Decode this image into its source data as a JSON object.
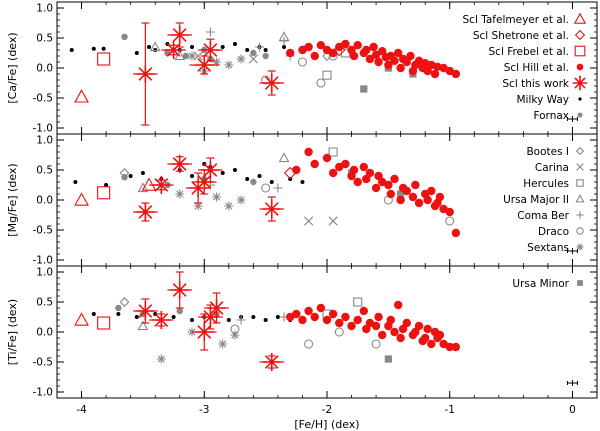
{
  "figure": {
    "x_axis": {
      "label": "[Fe/H] (dex)",
      "lim": [
        -4.2,
        0.2
      ],
      "ticks": [
        -4,
        -3,
        -2,
        -1,
        0
      ]
    },
    "y_ticks": [
      -1.0,
      -0.5,
      0.0,
      0.5,
      1.0
    ],
    "y_lim": [
      -1.1,
      1.1
    ],
    "colors": {
      "red": "#ee1111",
      "grey": "#888888",
      "black": "#000000"
    }
  },
  "chart_data": [
    {
      "type": "scatter",
      "panel": "Ca",
      "ylabel": "[Ca/Fe] (dex)",
      "legend": [
        "Scl Tafelmeyer et al.",
        "Scl Shetrone et al.",
        "Scl Frebel et al.",
        "Scl Hill et al.",
        "Scl this work",
        "Milky Way",
        "Fornax"
      ],
      "legend_markers": [
        "tri-red",
        "diamond-red",
        "square-red",
        "dot-red",
        "star-red",
        "dot-black",
        "dot-grey"
      ],
      "series": [
        {
          "name": "Milky Way",
          "marker": "dot-black",
          "x": [
            -4.08,
            -3.9,
            -3.82,
            -3.55,
            -3.45,
            -3.4,
            -3.3,
            -3.2,
            -3.1,
            -3.0,
            -2.95,
            -2.85,
            -2.75,
            -2.65,
            -2.55,
            -2.5,
            -2.35,
            -2.2
          ],
          "y": [
            0.3,
            0.32,
            0.32,
            0.25,
            0.35,
            0.3,
            0.4,
            0.3,
            0.35,
            0.32,
            0.3,
            0.35,
            0.4,
            0.3,
            0.35,
            0.3,
            0.35,
            0.3
          ]
        },
        {
          "name": "Fornax",
          "marker": "dot-grey",
          "x": [
            -3.65,
            -3.3,
            -3.15,
            -3.0,
            -2.95,
            -2.6,
            -2.5
          ],
          "y": [
            0.52,
            0.25,
            0.2,
            0.3,
            0.15,
            0.25,
            0.2
          ]
        },
        {
          "name": "Sextans",
          "marker": "asterisk-grey",
          "x": [
            -3.1,
            -3.0,
            -2.9,
            -2.8,
            -2.7
          ],
          "y": [
            0.2,
            -0.05,
            0.1,
            0.05,
            0.15
          ]
        },
        {
          "name": "Carina",
          "marker": "x-grey",
          "x": [
            -3.05,
            -2.6
          ],
          "y": [
            0.2,
            0.15
          ]
        },
        {
          "name": "Coma Ber",
          "marker": "plus-grey",
          "x": [
            -2.95,
            -2.55,
            -2.35,
            -2.3
          ],
          "y": [
            0.6,
            0.35,
            0.45,
            0.2
          ]
        },
        {
          "name": "Ursa Major II",
          "marker": "tri-grey",
          "x": [
            -3.4,
            -3.2,
            -2.35
          ],
          "y": [
            0.35,
            0.2,
            0.52
          ]
        },
        {
          "name": "Draco",
          "marker": "circle-grey",
          "x": [
            -2.5,
            -2.2,
            -2.05,
            -1.95
          ],
          "y": [
            -0.2,
            0.1,
            -0.25,
            0.2
          ]
        },
        {
          "name": "Bootes I",
          "marker": "diamond-grey",
          "x": [
            -2.0
          ],
          "y": [
            0.2
          ]
        },
        {
          "name": "Hercules",
          "marker": "square-grey",
          "x": [
            -2.0,
            -1.85
          ],
          "y": [
            -0.12,
            0.25
          ]
        },
        {
          "name": "Ursa Minor",
          "marker": "square-filled-grey",
          "x": [
            -1.7,
            -1.5,
            -1.3
          ],
          "y": [
            -0.35,
            0.0,
            -0.1
          ]
        },
        {
          "name": "Scl Tafelmeyer et al.",
          "marker": "tri-red",
          "x": [
            -4.0
          ],
          "y": [
            -0.48
          ]
        },
        {
          "name": "Scl Shetrone et al.",
          "marker": "diamond-red",
          "x": [
            -1.9
          ],
          "y": [
            0.3
          ]
        },
        {
          "name": "Scl Frebel et al.",
          "marker": "square-red",
          "x": [
            -3.82
          ],
          "y": [
            0.15
          ]
        },
        {
          "name": "Scl Hill et al.",
          "marker": "dot-red",
          "x": [
            -2.3,
            -2.2,
            -2.15,
            -2.1,
            -2.05,
            -2.0,
            -1.95,
            -1.9,
            -1.85,
            -1.8,
            -1.78,
            -1.75,
            -1.7,
            -1.68,
            -1.65,
            -1.62,
            -1.6,
            -1.58,
            -1.55,
            -1.52,
            -1.5,
            -1.48,
            -1.45,
            -1.42,
            -1.4,
            -1.38,
            -1.35,
            -1.32,
            -1.3,
            -1.28,
            -1.25,
            -1.22,
            -1.2,
            -1.18,
            -1.15,
            -1.12,
            -1.1,
            -1.05,
            -1.0,
            -0.95
          ],
          "y": [
            0.25,
            0.3,
            0.35,
            0.2,
            0.38,
            0.3,
            0.25,
            0.35,
            0.4,
            0.3,
            0.2,
            0.38,
            0.25,
            0.3,
            0.15,
            0.35,
            0.22,
            0.1,
            0.28,
            0.18,
            0.05,
            0.2,
            0.12,
            0.25,
            0.0,
            0.15,
            0.1,
            0.2,
            -0.05,
            0.05,
            0.12,
            0.0,
            0.08,
            -0.05,
            0.05,
            -0.1,
            0.02,
            0.0,
            -0.05,
            -0.1
          ]
        },
        {
          "name": "Scl this work",
          "marker": "star-red",
          "x": [
            -3.48,
            -3.25,
            -3.2,
            -3.0,
            -2.95,
            -2.45
          ],
          "y": [
            -0.1,
            0.3,
            0.55,
            0.05,
            0.3,
            -0.25
          ],
          "yerr": [
            0.85,
            0.08,
            0.2,
            0.15,
            0.18,
            0.2
          ],
          "xerr": [
            0.1,
            0.1,
            0.1,
            0.12,
            0.1,
            0.1
          ]
        }
      ]
    },
    {
      "type": "scatter",
      "panel": "Mg",
      "ylabel": "[Mg/Fe] (dex)",
      "legend": [
        "Bootes I",
        "Carina",
        "Hercules",
        "Ursa Major II",
        "Coma Ber",
        "Draco",
        "Sextans"
      ],
      "legend_markers": [
        "diamond-grey",
        "x-grey",
        "square-grey",
        "tri-grey",
        "plus-grey",
        "circle-grey",
        "asterisk-grey"
      ],
      "series": [
        {
          "name": "Milky Way",
          "marker": "dot-black",
          "x": [
            -4.05,
            -3.8,
            -3.6,
            -3.5,
            -3.35,
            -3.2,
            -3.1,
            -3.0,
            -2.95,
            -2.85,
            -2.75,
            -2.65,
            -2.55,
            -2.45,
            -2.3,
            -2.2
          ],
          "y": [
            0.3,
            0.25,
            0.4,
            0.45,
            0.35,
            0.5,
            0.4,
            0.6,
            0.55,
            0.45,
            0.5,
            0.35,
            0.4,
            0.3,
            0.35,
            0.3
          ]
        },
        {
          "name": "Fornax",
          "marker": "dot-grey",
          "x": [
            -3.65,
            -3.3,
            -3.0,
            -2.6
          ],
          "y": [
            0.38,
            0.25,
            0.35,
            0.3
          ]
        },
        {
          "name": "Sextans",
          "marker": "asterisk-grey",
          "x": [
            -3.2,
            -3.05,
            -2.9,
            -2.8,
            -2.7
          ],
          "y": [
            0.1,
            -0.1,
            0.05,
            -0.1,
            0.0
          ]
        },
        {
          "name": "Carina",
          "marker": "x-grey",
          "x": [
            -2.15,
            -1.95
          ],
          "y": [
            -0.35,
            -0.35
          ]
        },
        {
          "name": "Coma Ber",
          "marker": "plus-grey",
          "x": [
            -2.95,
            -2.4
          ],
          "y": [
            0.25,
            0.2
          ]
        },
        {
          "name": "Ursa Major II",
          "marker": "tri-grey",
          "x": [
            -3.5,
            -2.35
          ],
          "y": [
            0.2,
            0.7
          ]
        },
        {
          "name": "Draco",
          "marker": "circle-grey",
          "x": [
            -2.5,
            -1.5,
            -1.0
          ],
          "y": [
            0.2,
            0.0,
            -0.35
          ]
        },
        {
          "name": "Bootes I",
          "marker": "diamond-grey",
          "x": [
            -3.65
          ],
          "y": [
            0.45
          ]
        },
        {
          "name": "Hercules",
          "marker": "square-grey",
          "x": [
            -1.95
          ],
          "y": [
            0.8
          ]
        },
        {
          "name": "Ursa Minor",
          "marker": "square-filled-grey",
          "x": [
            -1.8,
            -1.4
          ],
          "y": [
            0.45,
            0.1
          ]
        },
        {
          "name": "Scl Tafelmeyer et al.",
          "marker": "tri-red",
          "x": [
            -4.0,
            -3.45
          ],
          "y": [
            0.0,
            0.25
          ]
        },
        {
          "name": "Scl Shetrone et al.",
          "marker": "diamond-red",
          "x": [
            -2.3
          ],
          "y": [
            0.45
          ]
        },
        {
          "name": "Scl Frebel et al.",
          "marker": "square-red",
          "x": [
            -3.82
          ],
          "y": [
            0.12
          ]
        },
        {
          "name": "Scl Hill et al.",
          "marker": "dot-red",
          "x": [
            -2.25,
            -2.15,
            -2.1,
            -2.0,
            -1.95,
            -1.9,
            -1.85,
            -1.8,
            -1.78,
            -1.75,
            -1.7,
            -1.68,
            -1.65,
            -1.6,
            -1.58,
            -1.55,
            -1.5,
            -1.48,
            -1.45,
            -1.4,
            -1.38,
            -1.35,
            -1.3,
            -1.28,
            -1.25,
            -1.2,
            -1.18,
            -1.15,
            -1.12,
            -1.1,
            -1.08,
            -1.05,
            -1.0,
            -0.95
          ],
          "y": [
            0.5,
            0.8,
            0.6,
            0.7,
            0.45,
            0.55,
            0.6,
            0.4,
            0.5,
            0.3,
            0.55,
            0.35,
            0.45,
            0.2,
            0.4,
            0.3,
            0.25,
            0.1,
            0.35,
            0.0,
            0.2,
            0.15,
            0.05,
            0.25,
            -0.05,
            0.1,
            0.0,
            0.15,
            -0.1,
            -0.05,
            0.05,
            -0.15,
            -0.2,
            -0.55
          ]
        },
        {
          "name": "Scl this work",
          "marker": "star-red",
          "x": [
            -3.48,
            -3.35,
            -3.2,
            -3.05,
            -3.0,
            -2.95,
            -2.45
          ],
          "y": [
            -0.2,
            0.25,
            0.6,
            0.2,
            0.3,
            0.5,
            -0.15
          ],
          "yerr": [
            0.15,
            0.08,
            0.12,
            0.25,
            0.2,
            0.2,
            0.2
          ],
          "xerr": [
            0.1,
            0.1,
            0.1,
            0.1,
            0.1,
            0.1,
            0.1
          ]
        }
      ]
    },
    {
      "type": "scatter",
      "panel": "Ti",
      "ylabel": "[Ti/Fe] (dex)",
      "legend": [
        "Ursa Minor"
      ],
      "legend_markers": [
        "square-filled-grey"
      ],
      "series": [
        {
          "name": "Milky Way",
          "marker": "dot-black",
          "x": [
            -3.9,
            -3.7,
            -3.55,
            -3.4,
            -3.25,
            -3.1,
            -3.0,
            -2.9,
            -2.8,
            -2.7,
            -2.6,
            -2.5,
            -2.4,
            -2.3
          ],
          "y": [
            0.3,
            0.3,
            0.25,
            0.3,
            0.25,
            0.2,
            0.25,
            0.3,
            0.2,
            0.25,
            0.25,
            0.2,
            0.25,
            0.2
          ]
        },
        {
          "name": "Fornax",
          "marker": "dot-grey",
          "x": [
            -3.7,
            -3.5,
            -3.2,
            -2.9
          ],
          "y": [
            0.4,
            0.3,
            0.35,
            0.3
          ]
        },
        {
          "name": "Sextans",
          "marker": "asterisk-grey",
          "x": [
            -3.35,
            -3.1,
            -2.85,
            -2.75
          ],
          "y": [
            -0.45,
            0.0,
            -0.2,
            -0.05
          ]
        },
        {
          "name": "Coma Ber",
          "marker": "plus-grey",
          "x": [
            -2.7,
            -2.35
          ],
          "y": [
            0.2,
            0.25
          ]
        },
        {
          "name": "Ursa Major II",
          "marker": "tri-grey",
          "x": [
            -3.5
          ],
          "y": [
            0.1
          ]
        },
        {
          "name": "Draco",
          "marker": "circle-grey",
          "x": [
            -2.75,
            -2.15,
            -1.9,
            -1.6
          ],
          "y": [
            0.05,
            -0.2,
            0.0,
            -0.2
          ]
        },
        {
          "name": "Bootes I",
          "marker": "diamond-grey",
          "x": [
            -3.65
          ],
          "y": [
            0.5
          ]
        },
        {
          "name": "Hercules",
          "marker": "square-grey",
          "x": [
            -2.0,
            -1.75
          ],
          "y": [
            0.3,
            0.5
          ]
        },
        {
          "name": "Ursa Minor",
          "marker": "square-filled-grey",
          "x": [
            -1.5
          ],
          "y": [
            -0.45
          ]
        },
        {
          "name": "Scl Tafelmeyer et al.",
          "marker": "tri-red",
          "x": [
            -4.0
          ],
          "y": [
            0.2
          ]
        },
        {
          "name": "Scl Frebel et al.",
          "marker": "square-red",
          "x": [
            -3.82
          ],
          "y": [
            0.15
          ]
        },
        {
          "name": "Scl Hill et al.",
          "marker": "dot-red",
          "x": [
            -2.3,
            -2.25,
            -2.2,
            -2.15,
            -2.1,
            -2.05,
            -2.0,
            -1.95,
            -1.9,
            -1.85,
            -1.8,
            -1.75,
            -1.7,
            -1.68,
            -1.65,
            -1.6,
            -1.58,
            -1.55,
            -1.5,
            -1.48,
            -1.45,
            -1.42,
            -1.4,
            -1.38,
            -1.35,
            -1.3,
            -1.28,
            -1.25,
            -1.22,
            -1.2,
            -1.18,
            -1.15,
            -1.12,
            -1.1,
            -1.08,
            -1.05,
            -1.0,
            -0.95
          ],
          "y": [
            0.25,
            0.3,
            0.2,
            0.35,
            0.25,
            0.4,
            0.2,
            0.3,
            0.15,
            0.25,
            0.1,
            0.2,
            0.35,
            0.05,
            0.15,
            0.1,
            0.25,
            -0.05,
            0.1,
            0.2,
            0.0,
            0.45,
            -0.1,
            0.05,
            0.15,
            -0.05,
            0.0,
            0.1,
            -0.15,
            -0.1,
            0.05,
            -0.2,
            0.0,
            -0.1,
            -0.05,
            -0.2,
            -0.25,
            -0.25
          ]
        },
        {
          "name": "Scl this work",
          "marker": "star-red",
          "x": [
            -3.48,
            -3.35,
            -3.2,
            -3.0,
            -2.95,
            -2.9,
            -2.45
          ],
          "y": [
            0.35,
            0.2,
            0.7,
            0.0,
            0.25,
            0.4,
            -0.5
          ],
          "yerr": [
            0.2,
            0.1,
            0.3,
            0.3,
            0.2,
            0.25,
            0.1
          ],
          "xerr": [
            0.1,
            0.1,
            0.1,
            0.1,
            0.1,
            0.1,
            0.1
          ]
        }
      ]
    }
  ]
}
